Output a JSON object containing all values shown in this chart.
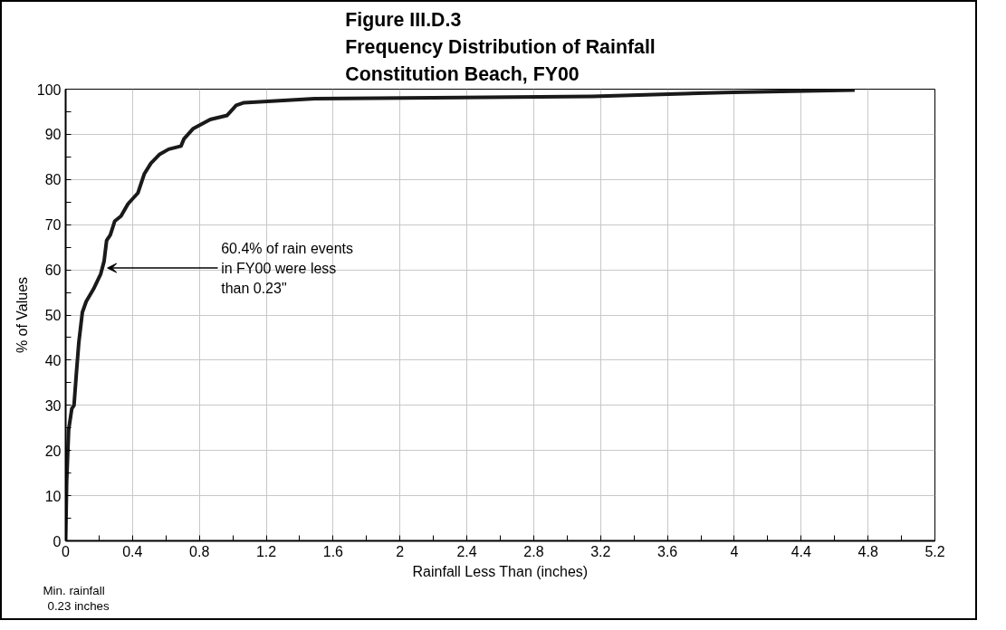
{
  "chart_data": {
    "type": "line",
    "title": "Figure III.D.3\nFrequency Distribution of Rainfall\nConstitution Beach, FY00",
    "xlabel": "Rainfall Less Than (inches)",
    "ylabel": "% of Values",
    "x": [
      0,
      0.006,
      0.018,
      0.037,
      0.05,
      0.064,
      0.079,
      0.1,
      0.123,
      0.166,
      0.21,
      0.23,
      0.245,
      0.267,
      0.294,
      0.331,
      0.373,
      0.432,
      0.47,
      0.51,
      0.56,
      0.616,
      0.69,
      0.708,
      0.764,
      0.865,
      0.966,
      1.02,
      1.067,
      1.49,
      3.15,
      3.99,
      4.72
    ],
    "series": [
      {
        "color": "#1a1a1a",
        "values": [
          0,
          13,
          24.6,
          29.3,
          30,
          37,
          44,
          50.6,
          53,
          55.7,
          59.1,
          61.9,
          66.5,
          67.7,
          70.8,
          71.9,
          74.6,
          77,
          81.2,
          83.6,
          85.5,
          86.7,
          87.4,
          89,
          91.3,
          93.3,
          94.2,
          96.4,
          97,
          97.9,
          98.4,
          99.3,
          99.8
        ]
      }
    ],
    "xlim": [
      0,
      5.2
    ],
    "ylim": [
      0,
      100
    ],
    "xticks": [
      0,
      {
        "value": 0.2,
        "label": null
      },
      0.4,
      {
        "value": 0.6,
        "label": null
      },
      0.8,
      {
        "value": 1.0,
        "label": null
      },
      1.2,
      {
        "value": 1.4,
        "label": null
      },
      1.6,
      {
        "value": 1.8,
        "label": null
      },
      2,
      {
        "value": 2.2,
        "label": null
      },
      2.4,
      {
        "value": 2.6,
        "label": null
      },
      2.8,
      {
        "value": 3.0,
        "label": null
      },
      3.2,
      {
        "value": 3.4,
        "label": null
      },
      3.6,
      {
        "value": 3.8,
        "label": null
      },
      4,
      {
        "value": 4.2,
        "label": null
      },
      4.4,
      {
        "value": 4.6,
        "label": null
      },
      4.8,
      {
        "value": 5.0,
        "label": null
      },
      5.2
    ],
    "yticks": [
      0,
      {
        "value": 5,
        "label": null
      },
      10,
      {
        "value": 15,
        "label": null
      },
      20,
      {
        "value": 25,
        "label": null
      },
      30,
      {
        "value": 35,
        "label": null
      },
      40,
      {
        "value": 45,
        "label": null
      },
      50,
      {
        "value": 55,
        "label": null
      },
      60,
      {
        "value": 65,
        "label": null
      },
      70,
      {
        "value": 75,
        "label": null
      },
      80,
      {
        "value": 85,
        "label": null
      },
      90,
      {
        "value": 95,
        "label": null
      },
      100
    ],
    "grid": true,
    "marker": "none",
    "line_style": "solid",
    "annotations": [
      {
        "text": "60.4% of rain events\nin FY00 were less\nthan  0.23\"",
        "x": 0.23,
        "y": 60.4
      },
      "Min. rainfall\n0.23 inches"
    ]
  }
}
